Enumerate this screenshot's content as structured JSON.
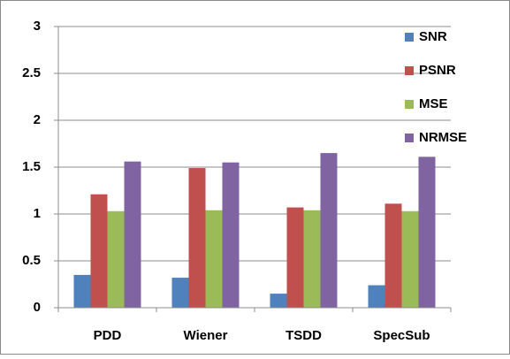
{
  "chart_data": {
    "type": "bar",
    "categories": [
      "PDD",
      "Wiener",
      "TSDD",
      "SpecSub"
    ],
    "series": [
      {
        "name": "SNR",
        "color": "#4f81bd",
        "values": [
          0.35,
          0.32,
          0.15,
          0.24
        ]
      },
      {
        "name": "PSNR",
        "color": "#c0504d",
        "values": [
          1.21,
          1.49,
          1.07,
          1.11
        ]
      },
      {
        "name": "MSE",
        "color": "#9bbb59",
        "values": [
          1.03,
          1.04,
          1.04,
          1.03
        ]
      },
      {
        "name": "NRMSE",
        "color": "#8064a2",
        "values": [
          1.56,
          1.55,
          1.65,
          1.61
        ]
      }
    ],
    "ylim": [
      0,
      3
    ],
    "yticks": [
      0,
      0.5,
      1,
      1.5,
      2,
      2.5,
      3
    ],
    "grid": true,
    "legend": "top-right"
  }
}
